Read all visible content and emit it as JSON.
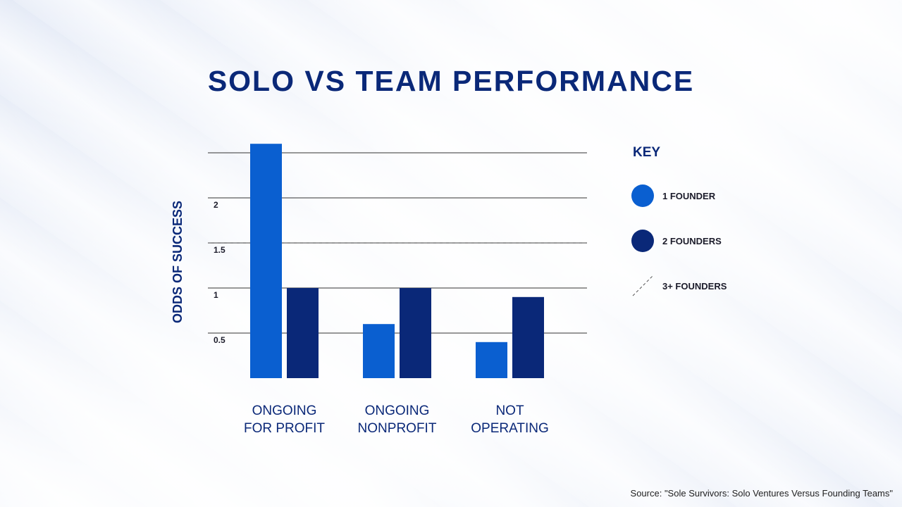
{
  "title": "SOLO VS TEAM PERFORMANCE",
  "key_title": "KEY",
  "legend": [
    {
      "label": "1 FOUNDER",
      "color": "#0a5fd0",
      "style": "circle"
    },
    {
      "label": "2 FOUNDERS",
      "color": "#0a2878",
      "style": "circle"
    },
    {
      "label": "3+ FOUNDERS",
      "color": "#555555",
      "style": "dashed-line"
    }
  ],
  "source": "Source: \"Sole Survivors: Solo Ventures Versus Founding Teams\"",
  "chart_data": {
    "type": "bar",
    "ylabel": "ODDS OF SUCCESS",
    "xlabel": "",
    "ylim": [
      0,
      2.5
    ],
    "yticks": [
      {
        "value": 0.5,
        "label": "0.5"
      },
      {
        "value": 1,
        "label": "1"
      },
      {
        "value": 1.5,
        "label": "1.5"
      },
      {
        "value": 2,
        "label": "2"
      },
      {
        "value": 2.5,
        "label": ""
      }
    ],
    "categories": [
      [
        "ONGOING",
        "FOR PROFIT"
      ],
      [
        "ONGOING",
        "NONPROFIT"
      ],
      [
        "NOT",
        "OPERATING"
      ]
    ],
    "series": [
      {
        "name": "1 FOUNDER",
        "color": "#0a5fd0",
        "values": [
          2.6,
          0.6,
          0.4
        ]
      },
      {
        "name": "2 FOUNDERS",
        "color": "#0a2878",
        "values": [
          1.0,
          1.0,
          0.9
        ]
      }
    ],
    "reference_lines": [
      {
        "name": "3+ FOUNDERS",
        "value": 1.5,
        "style": "dashed"
      }
    ],
    "grid": true,
    "legend_position": "right"
  }
}
